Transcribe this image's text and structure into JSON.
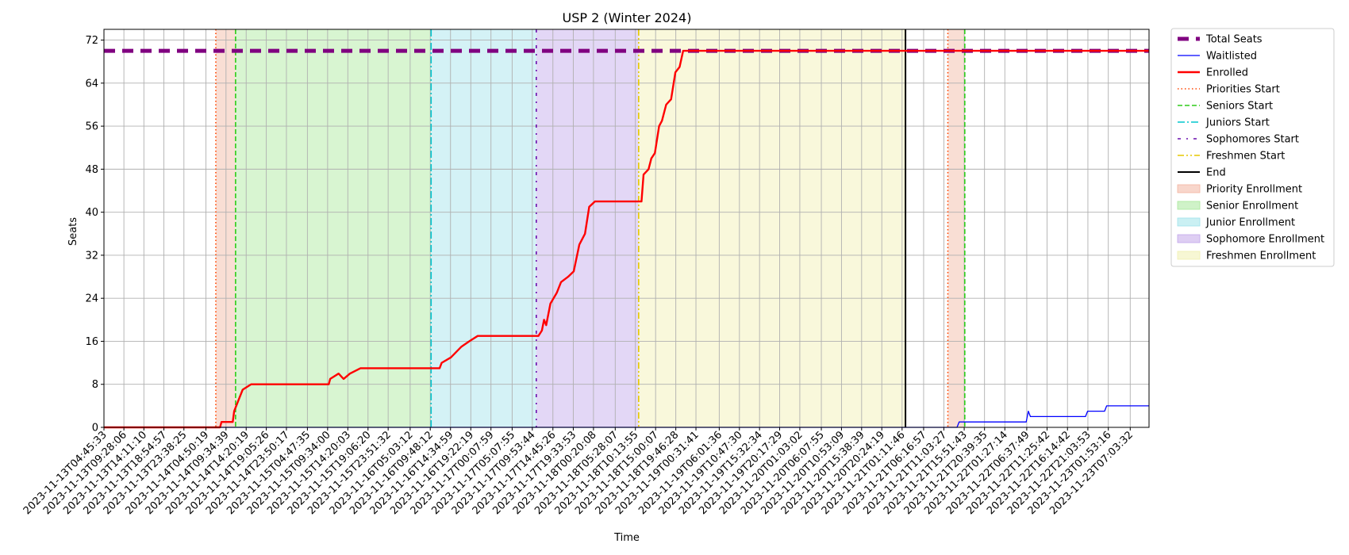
{
  "chart_data": {
    "type": "line",
    "title": "USP 2 (Winter 2024)",
    "xlabel": "Time",
    "ylabel": "Seats",
    "ylim": [
      0,
      74
    ],
    "yticks": [
      0,
      8,
      16,
      24,
      32,
      40,
      48,
      56,
      64,
      72
    ],
    "grid": true,
    "legend_placement": "outside-right",
    "xticks": [
      "2023-11-13T04:45:33",
      "2023-11-13T09:28:06",
      "2023-11-13T14:11:10",
      "2023-11-13T18:54:57",
      "2023-11-13T23:38:25",
      "2023-11-14T04:50:19",
      "2023-11-14T09:34:39",
      "2023-11-14T14:20:19",
      "2023-11-14T19:05:26",
      "2023-11-14T23:50:17",
      "2023-11-15T04:47:35",
      "2023-11-15T09:34:00",
      "2023-11-15T14:20:03",
      "2023-11-15T19:06:20",
      "2023-11-15T23:51:32",
      "2023-11-16T05:03:12",
      "2023-11-16T09:48:12",
      "2023-11-16T14:34:59",
      "2023-11-16T19:22:19",
      "2023-11-17T00:07:59",
      "2023-11-17T05:07:55",
      "2023-11-17T09:53:44",
      "2023-11-17T14:45:26",
      "2023-11-17T19:33:53",
      "2023-11-18T00:20:08",
      "2023-11-18T05:28:07",
      "2023-11-18T10:13:55",
      "2023-11-18T15:00:07",
      "2023-11-18T19:46:28",
      "2023-11-19T00:31:41",
      "2023-11-19T06:01:36",
      "2023-11-19T10:47:30",
      "2023-11-19T15:32:34",
      "2023-11-19T20:17:29",
      "2023-11-20T01:03:02",
      "2023-11-20T06:07:55",
      "2023-11-20T10:53:09",
      "2023-11-20T15:38:39",
      "2023-11-20T20:24:19",
      "2023-11-21T01:11:46",
      "2023-11-21T06:16:57",
      "2023-11-21T11:03:27",
      "2023-11-21T15:51:43",
      "2023-11-21T20:39:35",
      "2023-11-22T01:27:14",
      "2023-11-22T06:37:49",
      "2023-11-22T11:25:42",
      "2023-11-22T16:14:42",
      "2023-11-22T21:03:53",
      "2023-11-23T01:53:16",
      "2023-11-23T07:03:32"
    ],
    "x_range": [
      "2023-11-13T04:45:33",
      "2023-11-23T11:30:00"
    ],
    "series": [
      {
        "name": "Total Seats",
        "color": "#800080",
        "style": "dashed-thick",
        "points": [
          [
            "2023-11-13T04:45:33",
            70
          ],
          [
            "2023-11-23T11:30:00",
            70
          ]
        ]
      },
      {
        "name": "Waitlisted",
        "color": "#0000ff",
        "style": "solid-thin",
        "points": [
          [
            "2023-11-13T04:45:33",
            0
          ],
          [
            "2023-11-21T14:10:00",
            0
          ],
          [
            "2023-11-21T14:40:00",
            1
          ],
          [
            "2023-11-22T06:30:00",
            1
          ],
          [
            "2023-11-22T07:00:00",
            3
          ],
          [
            "2023-11-22T07:30:00",
            2
          ],
          [
            "2023-11-22T20:30:00",
            2
          ],
          [
            "2023-11-22T21:00:00",
            3
          ],
          [
            "2023-11-23T01:00:00",
            3
          ],
          [
            "2023-11-23T01:30:00",
            4
          ],
          [
            "2023-11-23T11:30:00",
            4
          ]
        ]
      },
      {
        "name": "Enrolled",
        "color": "#ff0000",
        "style": "solid-thick",
        "points": [
          [
            "2023-11-13T04:45:33",
            0
          ],
          [
            "2023-11-14T08:10:00",
            0
          ],
          [
            "2023-11-14T08:30:00",
            1
          ],
          [
            "2023-11-14T11:10:00",
            1
          ],
          [
            "2023-11-14T11:30:00",
            3
          ],
          [
            "2023-11-14T12:30:00",
            5
          ],
          [
            "2023-11-14T13:30:00",
            7
          ],
          [
            "2023-11-14T15:30:00",
            8
          ],
          [
            "2023-11-15T09:50:00",
            8
          ],
          [
            "2023-11-15T10:10:00",
            9
          ],
          [
            "2023-11-15T12:10:00",
            10
          ],
          [
            "2023-11-15T13:20:00",
            9
          ],
          [
            "2023-11-15T14:50:00",
            10
          ],
          [
            "2023-11-15T17:20:00",
            11
          ],
          [
            "2023-11-16T12:00:00",
            11
          ],
          [
            "2023-11-16T12:30:00",
            12
          ],
          [
            "2023-11-16T14:40:00",
            13
          ],
          [
            "2023-11-16T17:10:00",
            15
          ],
          [
            "2023-11-16T19:00:00",
            16
          ],
          [
            "2023-11-16T21:00:00",
            17
          ],
          [
            "2023-11-17T11:20:00",
            17
          ],
          [
            "2023-11-17T12:10:00",
            18
          ],
          [
            "2023-11-17T12:40:00",
            20
          ],
          [
            "2023-11-17T13:10:00",
            19
          ],
          [
            "2023-11-17T14:10:00",
            23
          ],
          [
            "2023-11-17T15:40:00",
            25
          ],
          [
            "2023-11-17T16:40:00",
            27
          ],
          [
            "2023-11-17T18:20:00",
            28
          ],
          [
            "2023-11-17T19:40:00",
            29
          ],
          [
            "2023-11-17T21:00:00",
            34
          ],
          [
            "2023-11-17T22:20:00",
            36
          ],
          [
            "2023-11-17T23:20:00",
            41
          ],
          [
            "2023-11-18T00:40:00",
            42
          ],
          [
            "2023-11-18T11:40:00",
            42
          ],
          [
            "2023-11-18T12:10:00",
            47
          ],
          [
            "2023-11-18T13:20:00",
            48
          ],
          [
            "2023-11-18T14:00:00",
            50
          ],
          [
            "2023-11-18T14:50:00",
            51
          ],
          [
            "2023-11-18T15:50:00",
            56
          ],
          [
            "2023-11-18T16:30:00",
            57
          ],
          [
            "2023-11-18T17:30:00",
            60
          ],
          [
            "2023-11-18T18:40:00",
            61
          ],
          [
            "2023-11-18T19:40:00",
            66
          ],
          [
            "2023-11-18T20:40:00",
            67
          ],
          [
            "2023-11-18T21:30:00",
            70
          ],
          [
            "2023-11-23T11:30:00",
            70
          ]
        ]
      }
    ],
    "vertical_lines": [
      {
        "name": "Priorities Start",
        "x": "2023-11-14T07:10:00",
        "color": "#ff4500",
        "style": "dotted"
      },
      {
        "name": "Seniors Start",
        "x": "2023-11-14T11:50:00",
        "color": "#2ecc1a",
        "style": "dashed"
      },
      {
        "name": "Juniors Start",
        "x": "2023-11-16T10:00:00",
        "color": "#00c5cd",
        "style": "dashdot"
      },
      {
        "name": "Sophomores Start",
        "x": "2023-11-17T10:50:00",
        "color": "#6a0dad",
        "style": "loose-dashdot"
      },
      {
        "name": "Freshmen Start",
        "x": "2023-11-18T11:00:00",
        "color": "#e6c800",
        "style": "dashdotdot"
      },
      {
        "name": "End",
        "x": "2023-11-21T02:00:00",
        "color": "#000000",
        "style": "solid"
      },
      {
        "name": "Priorities Start",
        "x": "2023-11-21T12:00:00",
        "color": "#ff4500",
        "style": "dotted"
      },
      {
        "name": "Seniors Start",
        "x": "2023-11-21T16:00:00",
        "color": "#2ecc1a",
        "style": "dashed"
      }
    ],
    "spans": [
      {
        "name": "Priority Enrollment",
        "from": "2023-11-14T07:10:00",
        "to": "2023-11-14T11:50:00",
        "color": "#f2b5a0"
      },
      {
        "name": "Senior Enrollment",
        "from": "2023-11-14T11:50:00",
        "to": "2023-11-16T10:00:00",
        "color": "#a8e89a"
      },
      {
        "name": "Junior Enrollment",
        "from": "2023-11-16T10:00:00",
        "to": "2023-11-17T10:50:00",
        "color": "#9fe3ea"
      },
      {
        "name": "Sophomore Enrollment",
        "from": "2023-11-17T10:50:00",
        "to": "2023-11-18T11:00:00",
        "color": "#c2a6ea"
      },
      {
        "name": "Freshmen Enrollment",
        "from": "2023-11-18T11:00:00",
        "to": "2023-11-21T02:00:00",
        "color": "#f1f0b0"
      },
      {
        "name": "Priority Enrollment",
        "from": "2023-11-21T12:00:00",
        "to": "2023-11-21T16:00:00",
        "color": "#f2b5a0"
      }
    ],
    "legend": [
      {
        "label": "Total Seats",
        "kind": "line",
        "color": "#800080",
        "style": "dashed-thick"
      },
      {
        "label": "Waitlisted",
        "kind": "line",
        "color": "#0000ff",
        "style": "solid-thin"
      },
      {
        "label": "Enrolled",
        "kind": "line",
        "color": "#ff0000",
        "style": "solid-thick"
      },
      {
        "label": "Priorities Start",
        "kind": "line",
        "color": "#ff4500",
        "style": "dotted"
      },
      {
        "label": "Seniors Start",
        "kind": "line",
        "color": "#2ecc1a",
        "style": "dashed"
      },
      {
        "label": "Juniors Start",
        "kind": "line",
        "color": "#00c5cd",
        "style": "dashdot"
      },
      {
        "label": "Sophomores Start",
        "kind": "line",
        "color": "#6a0dad",
        "style": "loose-dashdot"
      },
      {
        "label": "Freshmen Start",
        "kind": "line",
        "color": "#e6c800",
        "style": "dashdotdot"
      },
      {
        "label": "End",
        "kind": "line",
        "color": "#000000",
        "style": "solid"
      },
      {
        "label": "Priority Enrollment",
        "kind": "patch",
        "color": "#f2b5a0"
      },
      {
        "label": "Senior Enrollment",
        "kind": "patch",
        "color": "#a8e89a"
      },
      {
        "label": "Junior Enrollment",
        "kind": "patch",
        "color": "#9fe3ea"
      },
      {
        "label": "Sophomore Enrollment",
        "kind": "patch",
        "color": "#c2a6ea"
      },
      {
        "label": "Freshmen Enrollment",
        "kind": "patch",
        "color": "#f1f0b0"
      }
    ]
  }
}
